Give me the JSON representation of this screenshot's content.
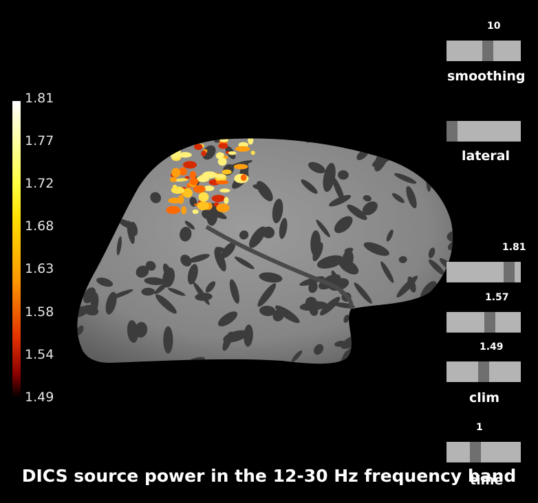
{
  "title": "DICS source power in the 12-30 Hz frequency band",
  "colorbar": {
    "labels": [
      "1.81",
      "1.77",
      "1.72",
      "1.68",
      "1.63",
      "1.58",
      "1.54",
      "1.49"
    ]
  },
  "sliders": {
    "smoothing": {
      "value_label": "10",
      "title": "smoothing",
      "position": 0.56
    },
    "orientation": {
      "title": "lateral",
      "position": 0.0
    },
    "clim_max": {
      "value_label": "1.81",
      "position": 0.9
    },
    "clim_mid": {
      "value_label": "1.57",
      "position": 0.6
    },
    "clim_min": {
      "value_label": "1.49",
      "position": 0.5
    },
    "clim_title": "clim",
    "time": {
      "value_label": "1",
      "title": "time",
      "position": 0.37
    }
  },
  "colors": {
    "background": "#000000",
    "brain_gyri": "#8e8e8e",
    "brain_sulci": "#3c3c3c",
    "activation_high": "#ffe14a",
    "activation_low": "#d62a00"
  }
}
